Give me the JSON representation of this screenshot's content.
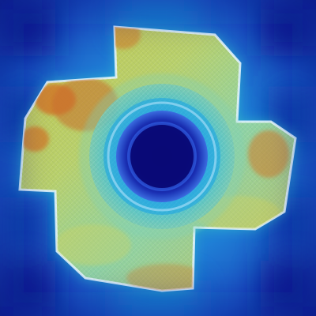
{
  "image": {
    "subject": "part-heatmap-overlay",
    "colors": {
      "background_deep": "#0b1f8f",
      "background_mid": "#1a63c9",
      "background_cyan": "#27b7c4",
      "heat_yellow": "#d8d255",
      "heat_orange": "#d07a2a",
      "part_outline": "#e7f7ff",
      "center_dark": "#0a0a7a"
    }
  }
}
